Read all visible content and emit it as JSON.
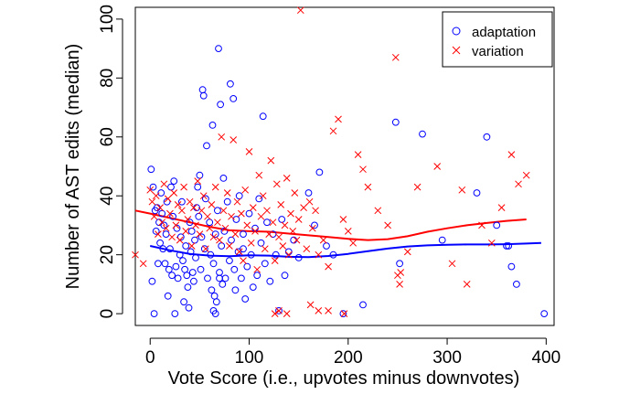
{
  "chart_data": {
    "type": "scatter",
    "title": "",
    "xlabel": "Vote Score (i.e., upvotes minus downvotes)",
    "ylabel": "Number of AST edits (median)",
    "xlim": [
      -15,
      408
    ],
    "ylim": [
      -4,
      104
    ],
    "x_ticks": [
      0,
      100,
      200,
      300,
      400
    ],
    "y_ticks": [
      0,
      20,
      40,
      60,
      80,
      100
    ],
    "legend_position": "top-right",
    "grid": false,
    "series": [
      {
        "name": "adaptation",
        "marker": "circle",
        "color": "#0000ff",
        "points": [
          [
            1,
            49
          ],
          [
            3,
            43
          ],
          [
            5,
            35
          ],
          [
            6,
            28
          ],
          [
            7,
            36
          ],
          [
            8,
            17
          ],
          [
            9,
            31
          ],
          [
            10,
            24
          ],
          [
            11,
            41
          ],
          [
            12,
            34
          ],
          [
            13,
            22
          ],
          [
            14,
            30
          ],
          [
            15,
            17
          ],
          [
            16,
            27
          ],
          [
            17,
            38
          ],
          [
            19,
            15
          ],
          [
            20,
            22
          ],
          [
            21,
            43
          ],
          [
            22,
            13
          ],
          [
            23,
            33
          ],
          [
            24,
            45
          ],
          [
            26,
            16
          ],
          [
            27,
            29
          ],
          [
            28,
            12
          ],
          [
            30,
            20
          ],
          [
            31,
            26
          ],
          [
            32,
            38
          ],
          [
            33,
            18
          ],
          [
            35,
            15
          ],
          [
            36,
            23
          ],
          [
            37,
            13
          ],
          [
            38,
            9
          ],
          [
            40,
            31
          ],
          [
            41,
            21
          ],
          [
            42,
            28
          ],
          [
            43,
            14
          ],
          [
            44,
            11
          ],
          [
            45,
            25
          ],
          [
            46,
            19
          ],
          [
            47,
            36
          ],
          [
            48,
            43
          ],
          [
            49,
            33
          ],
          [
            50,
            47
          ],
          [
            51,
            15
          ],
          [
            52,
            26
          ],
          [
            53,
            76
          ],
          [
            54,
            74
          ],
          [
            55,
            22
          ],
          [
            56,
            39
          ],
          [
            57,
            57
          ],
          [
            58,
            12
          ],
          [
            60,
            31
          ],
          [
            61,
            20
          ],
          [
            62,
            8
          ],
          [
            63,
            64
          ],
          [
            64,
            17
          ],
          [
            65,
            6
          ],
          [
            66,
            27
          ],
          [
            67,
            4
          ],
          [
            68,
            35
          ],
          [
            69,
            90
          ],
          [
            70,
            14
          ],
          [
            71,
            71
          ],
          [
            72,
            23
          ],
          [
            73,
            10
          ],
          [
            74,
            46
          ],
          [
            75,
            28
          ],
          [
            76,
            12
          ],
          [
            78,
            38
          ],
          [
            80,
            18
          ],
          [
            81,
            78
          ],
          [
            82,
            25
          ],
          [
            84,
            73
          ],
          [
            85,
            15
          ],
          [
            86,
            8
          ],
          [
            87,
            32
          ],
          [
            89,
            21
          ],
          [
            90,
            40
          ],
          [
            92,
            12
          ],
          [
            94,
            27
          ],
          [
            96,
            5
          ],
          [
            98,
            16
          ],
          [
            100,
            34
          ],
          [
            102,
            20
          ],
          [
            104,
            9
          ],
          [
            106,
            29
          ],
          [
            108,
            13
          ],
          [
            110,
            39
          ],
          [
            112,
            24
          ],
          [
            114,
            67
          ],
          [
            116,
            17
          ],
          [
            118,
            31
          ],
          [
            121,
            11
          ],
          [
            124,
            27
          ],
          [
            127,
            20
          ],
          [
            130,
            1
          ],
          [
            133,
            32
          ],
          [
            136,
            13
          ],
          [
            140,
            21
          ],
          [
            145,
            25
          ],
          [
            150,
            19
          ],
          [
            160,
            41
          ],
          [
            166,
            30
          ],
          [
            171,
            48
          ],
          [
            178,
            23
          ],
          [
            185,
            20
          ],
          [
            195,
            0
          ],
          [
            215,
            3
          ],
          [
            248,
            65
          ],
          [
            252,
            17
          ],
          [
            275,
            61
          ],
          [
            295,
            25
          ],
          [
            330,
            41
          ],
          [
            340,
            60
          ],
          [
            350,
            30
          ],
          [
            360,
            23
          ],
          [
            362,
            23
          ],
          [
            365,
            16
          ],
          [
            370,
            10
          ],
          [
            398,
            0
          ],
          [
            2,
            11
          ],
          [
            4,
            0
          ],
          [
            18,
            6
          ],
          [
            25,
            0
          ],
          [
            34,
            4
          ],
          [
            39,
            2
          ],
          [
            64,
            1
          ],
          [
            66,
            0
          ],
          [
            70,
            12
          ],
          [
            94,
            22
          ]
        ]
      },
      {
        "name": "variation",
        "marker": "cross",
        "color": "#ff0000",
        "points": [
          [
            -15,
            20
          ],
          [
            -7,
            17
          ],
          [
            0,
            42
          ],
          [
            2,
            38
          ],
          [
            4,
            33
          ],
          [
            6,
            40
          ],
          [
            8,
            27
          ],
          [
            10,
            36
          ],
          [
            12,
            31
          ],
          [
            14,
            44
          ],
          [
            16,
            29
          ],
          [
            18,
            39
          ],
          [
            20,
            34
          ],
          [
            22,
            26
          ],
          [
            24,
            41
          ],
          [
            26,
            30
          ],
          [
            28,
            37
          ],
          [
            30,
            25
          ],
          [
            32,
            35
          ],
          [
            34,
            43
          ],
          [
            36,
            28
          ],
          [
            38,
            32
          ],
          [
            40,
            38
          ],
          [
            42,
            23
          ],
          [
            44,
            36
          ],
          [
            46,
            30
          ],
          [
            48,
            45
          ],
          [
            50,
            27
          ],
          [
            52,
            35
          ],
          [
            54,
            40
          ],
          [
            56,
            22
          ],
          [
            58,
            33
          ],
          [
            60,
            29
          ],
          [
            62,
            37
          ],
          [
            64,
            26
          ],
          [
            66,
            43
          ],
          [
            68,
            31
          ],
          [
            70,
            25
          ],
          [
            72,
            60
          ],
          [
            74,
            35
          ],
          [
            76,
            29
          ],
          [
            78,
            41
          ],
          [
            80,
            23
          ],
          [
            82,
            33
          ],
          [
            84,
            59
          ],
          [
            86,
            27
          ],
          [
            88,
            38
          ],
          [
            90,
            21
          ],
          [
            92,
            34
          ],
          [
            94,
            18
          ],
          [
            96,
            42
          ],
          [
            98,
            30
          ],
          [
            100,
            55
          ],
          [
            102,
            24
          ],
          [
            104,
            36
          ],
          [
            106,
            28
          ],
          [
            108,
            15
          ],
          [
            110,
            47
          ],
          [
            112,
            33
          ],
          [
            114,
            40
          ],
          [
            116,
            22
          ],
          [
            118,
            35
          ],
          [
            120,
            27
          ],
          [
            122,
            52
          ],
          [
            124,
            31
          ],
          [
            126,
            18
          ],
          [
            128,
            44
          ],
          [
            130,
            26
          ],
          [
            132,
            37
          ],
          [
            134,
            23
          ],
          [
            136,
            30
          ],
          [
            138,
            46
          ],
          [
            140,
            20
          ],
          [
            142,
            34
          ],
          [
            144,
            28
          ],
          [
            146,
            41
          ],
          [
            148,
            25
          ],
          [
            150,
            32
          ],
          [
            152,
            103
          ],
          [
            155,
            36
          ],
          [
            158,
            22
          ],
          [
            161,
            38
          ],
          [
            164,
            29
          ],
          [
            167,
            35
          ],
          [
            170,
            20
          ],
          [
            175,
            25
          ],
          [
            180,
            16
          ],
          [
            185,
            62
          ],
          [
            190,
            66
          ],
          [
            195,
            32
          ],
          [
            200,
            28
          ],
          [
            205,
            24
          ],
          [
            210,
            54
          ],
          [
            215,
            49
          ],
          [
            220,
            43
          ],
          [
            230,
            35
          ],
          [
            240,
            30
          ],
          [
            248,
            87
          ],
          [
            250,
            13
          ],
          [
            252,
            10
          ],
          [
            260,
            21
          ],
          [
            270,
            43
          ],
          [
            290,
            50
          ],
          [
            305,
            17
          ],
          [
            315,
            42
          ],
          [
            320,
            10
          ],
          [
            335,
            30
          ],
          [
            345,
            24
          ],
          [
            355,
            36
          ],
          [
            365,
            54
          ],
          [
            372,
            44
          ],
          [
            380,
            47
          ],
          [
            126,
            0
          ],
          [
            130,
            1
          ],
          [
            138,
            0
          ],
          [
            162,
            3
          ],
          [
            170,
            1
          ],
          [
            180,
            1
          ],
          [
            196,
            0
          ],
          [
            253,
            14
          ]
        ]
      }
    ],
    "curves": [
      {
        "name": "adaptation",
        "color": "#0000ff",
        "x": [
          0,
          20,
          40,
          60,
          80,
          100,
          120,
          140,
          160,
          180,
          200,
          220,
          240,
          260,
          280,
          300,
          320,
          340,
          360,
          380,
          395
        ],
        "y": [
          23,
          21.5,
          20.3,
          19.7,
          19.5,
          19.8,
          19.7,
          19.3,
          19.2,
          19.6,
          20.3,
          21.2,
          22.1,
          22.8,
          23.2,
          23.4,
          23.5,
          23.5,
          23.6,
          23.8,
          24
        ]
      },
      {
        "name": "variation",
        "color": "#ff0000",
        "x": [
          -15,
          0,
          20,
          40,
          60,
          80,
          100,
          120,
          140,
          160,
          180,
          200,
          220,
          240,
          260,
          280,
          300,
          320,
          340,
          360,
          380
        ],
        "y": [
          35,
          34,
          32.5,
          31,
          29.5,
          28.3,
          28,
          27.8,
          27.2,
          26.6,
          26,
          25.4,
          25,
          25.3,
          26.3,
          27.8,
          29,
          30,
          30.8,
          31.5,
          32
        ]
      }
    ]
  }
}
